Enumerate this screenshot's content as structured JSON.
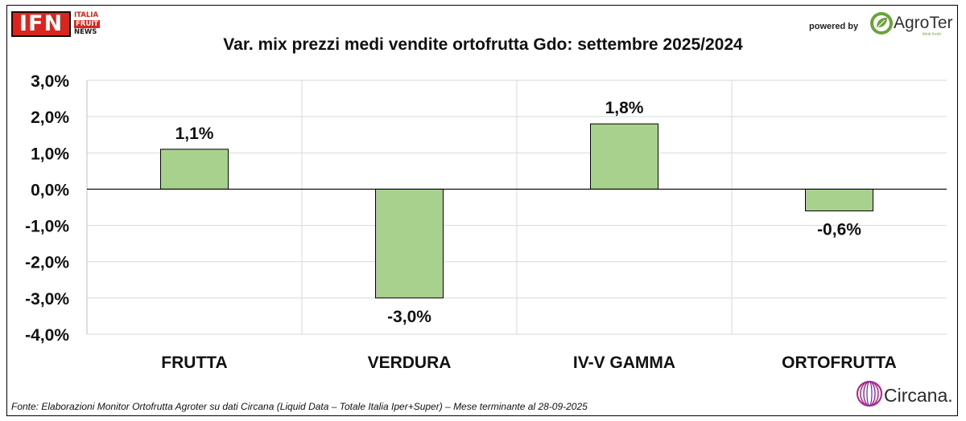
{
  "header": {
    "ifn_logo": {
      "main": "IFN",
      "lines": [
        "ITALIA",
        "FRUIT",
        "NEWS"
      ]
    },
    "powered_by": "powered by",
    "agroter_logo": {
      "name": "AgroTer",
      "tagline": "think fresh"
    }
  },
  "chart_data": {
    "type": "bar",
    "title": "Var. mix prezzi medi vendite ortofrutta Gdo: settembre 2025/2024",
    "categories": [
      "FRUTTA",
      "VERDURA",
      "IV-V GAMMA",
      "ORTOFRUTTA"
    ],
    "values": [
      1.1,
      -3.0,
      1.8,
      -0.6
    ],
    "data_labels": [
      "1,1%",
      "-3,0%",
      "1,8%",
      "-0,6%"
    ],
    "ylim": [
      -4.0,
      3.0
    ],
    "y_ticks": [
      3.0,
      2.0,
      1.0,
      0.0,
      -1.0,
      -2.0,
      -3.0,
      -4.0
    ],
    "y_tick_labels": [
      "3,0%",
      "2,0%",
      "1,0%",
      "0,0%",
      "-1,0%",
      "-2,0%",
      "-3,0%",
      "-4,0%"
    ],
    "grid": true,
    "legend": "none",
    "bar_color": "#a9d18e",
    "bar_edge_color": "#000000"
  },
  "footer": {
    "source": "Fonte: Elaborazioni Monitor Ortofrutta Agroter su dati Circana (Liquid Data – Totale Italia Iper+Super) – Mese terminante al 28-09-2025",
    "circana_logo": "Circana."
  }
}
